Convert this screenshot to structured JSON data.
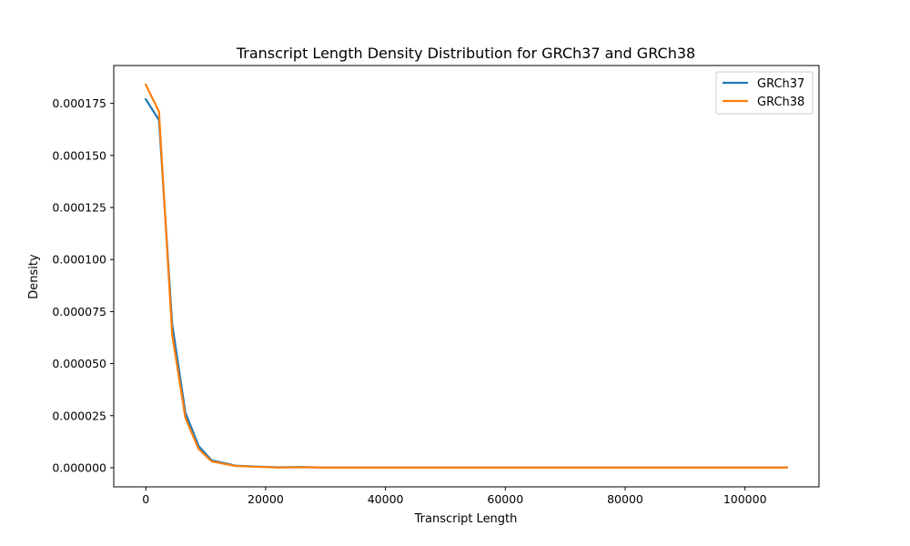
{
  "chart_data": {
    "type": "line",
    "title": "Transcript Length Density Distribution for GRCh37 and GRCh38",
    "xlabel": "Transcript Length",
    "ylabel": "Density",
    "xlim": [
      -5350,
      112350
    ],
    "ylim": [
      -9.2e-06,
      0.0001932
    ],
    "xticks": [
      0,
      20000,
      40000,
      60000,
      80000,
      100000
    ],
    "xtick_labels": [
      "0",
      "20000",
      "40000",
      "60000",
      "80000",
      "100000"
    ],
    "yticks": [
      0,
      2.5e-05,
      5e-05,
      7.5e-05,
      0.0001,
      0.000125,
      0.00015,
      0.000175
    ],
    "ytick_labels": [
      "0.000000",
      "0.000025",
      "0.000050",
      "0.000075",
      "0.000100",
      "0.000125",
      "0.000150",
      "0.000175"
    ],
    "grid": false,
    "legend_position": "top-right",
    "series": [
      {
        "name": "GRCh37",
        "color": "#1f77b4",
        "x": [
          0,
          2200,
          4400,
          6600,
          8800,
          11000,
          15000,
          19000,
          22000,
          26000,
          30000,
          40000,
          60000,
          80000,
          100000,
          107000
        ],
        "y": [
          0.000177,
          0.000167,
          6.9e-05,
          2.65e-05,
          1.05e-05,
          3.5e-06,
          1e-06,
          5e-07,
          2e-07,
          3e-07,
          1e-07,
          1e-07,
          1e-07,
          1e-07,
          1e-07,
          1e-07
        ]
      },
      {
        "name": "GRCh38",
        "color": "#ff7f0e",
        "x": [
          0,
          2200,
          4400,
          6600,
          8800,
          11000,
          15000,
          19000,
          22000,
          26000,
          30000,
          40000,
          60000,
          80000,
          100000,
          107000
        ],
        "y": [
          0.000184,
          0.000171,
          6.4e-05,
          2.4e-05,
          9e-06,
          3e-06,
          8e-07,
          4e-07,
          1e-07,
          2e-07,
          1e-07,
          1e-07,
          1e-07,
          1e-07,
          1e-07,
          1e-07
        ]
      }
    ]
  }
}
